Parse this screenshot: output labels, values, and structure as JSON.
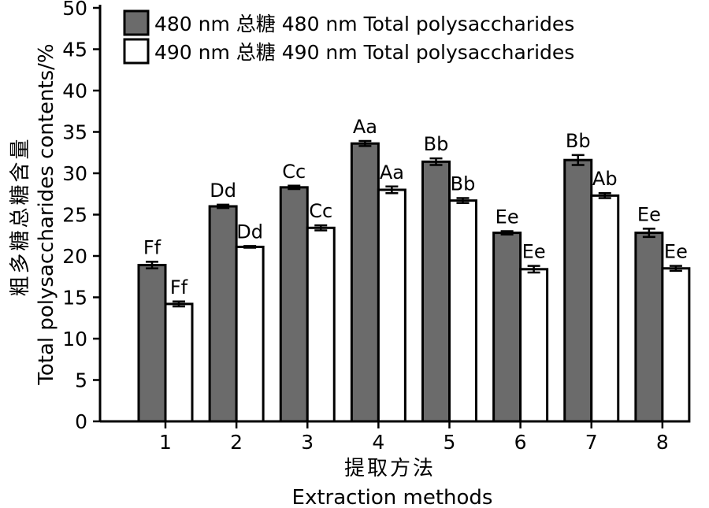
{
  "chart_data": {
    "type": "bar",
    "ylabel_cn": "粗多糖总糖含量",
    "ylabel_en": "Total polysaccharides contents/%",
    "xlabel_cn": "提取方法",
    "xlabel_en": "Extraction methods",
    "categories": [
      "1",
      "2",
      "3",
      "4",
      "5",
      "6",
      "7",
      "8"
    ],
    "ylim": [
      0,
      50
    ],
    "yticks": [
      0,
      5,
      10,
      15,
      20,
      25,
      30,
      35,
      40,
      45,
      50
    ],
    "grid": false,
    "legend_position": "top-left",
    "series": [
      {
        "name": "480 nm 总糖  480 nm  Total polysaccharides",
        "color": "#6b6b6b",
        "values": [
          18.9,
          26.0,
          28.3,
          33.6,
          31.4,
          22.8,
          31.6,
          22.8
        ],
        "errors": [
          0.4,
          0.2,
          0.2,
          0.3,
          0.4,
          0.2,
          0.6,
          0.5
        ],
        "labels": [
          "Ff",
          "Dd",
          "Cc",
          "Aa",
          "Bb",
          "Ee",
          "Bb",
          "Ee"
        ]
      },
      {
        "name": "490 nm 总糖  490 nm  Total polysaccharides",
        "color": "#ffffff",
        "values": [
          14.2,
          21.1,
          23.4,
          28.0,
          26.7,
          18.4,
          27.3,
          18.5
        ],
        "errors": [
          0.3,
          0.1,
          0.3,
          0.4,
          0.3,
          0.4,
          0.3,
          0.3
        ],
        "labels": [
          "Ff",
          "Dd",
          "Cc",
          "Aa",
          "Bb",
          "Ee",
          "Ab",
          "Ee"
        ]
      }
    ]
  }
}
